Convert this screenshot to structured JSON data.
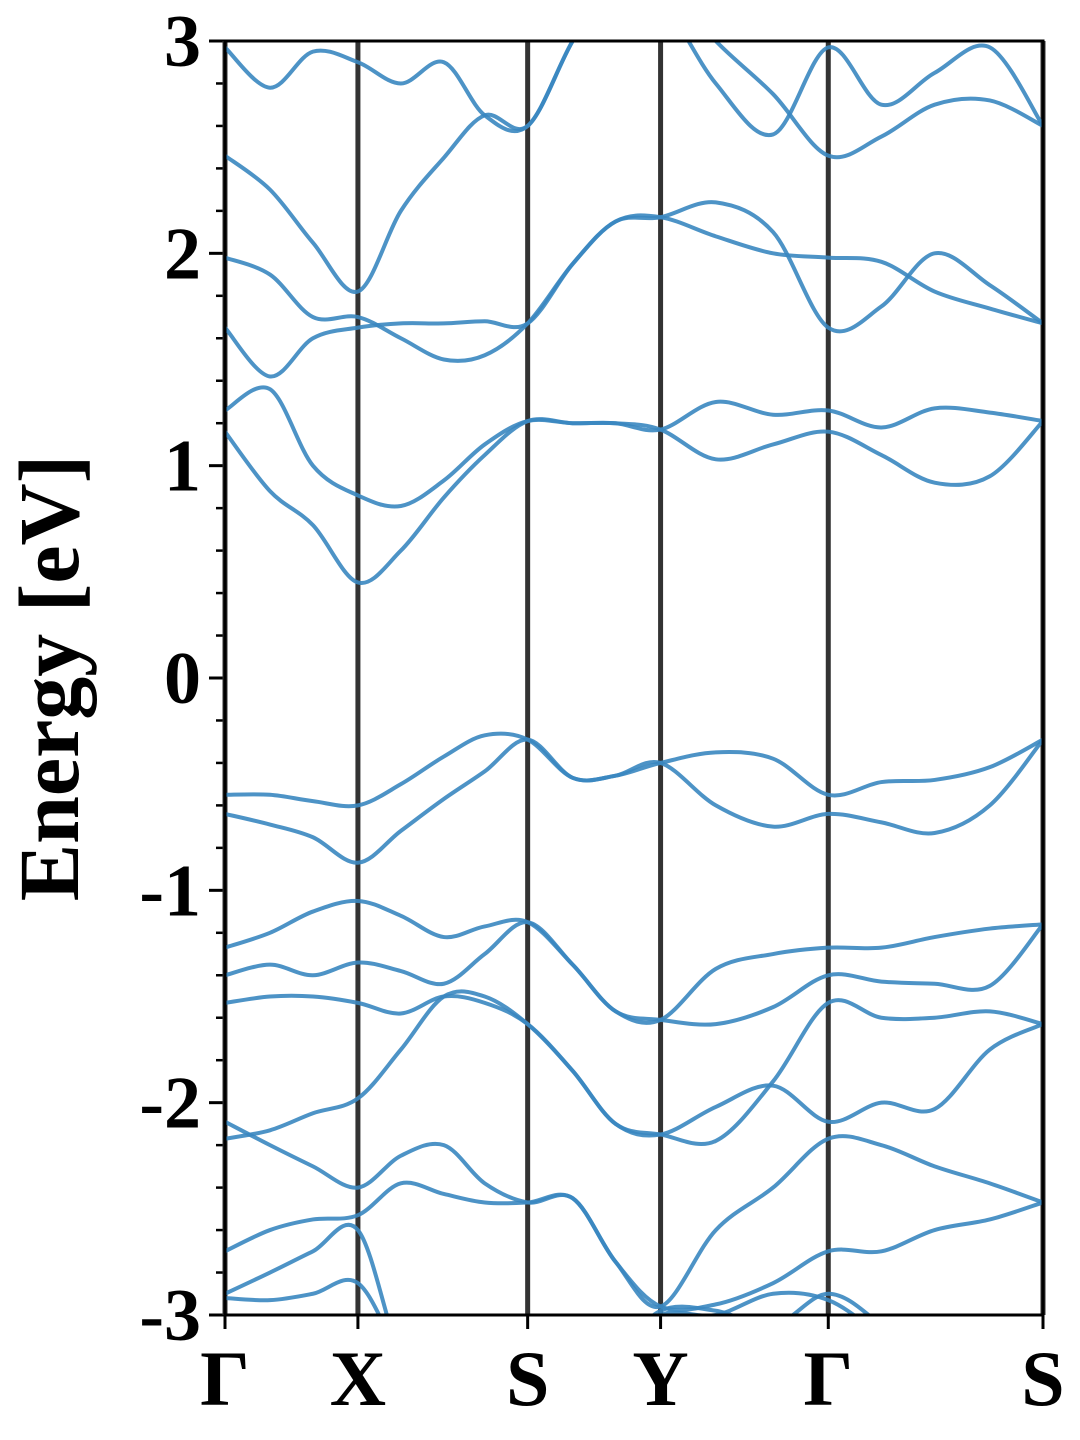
{
  "chart_data": {
    "type": "band-structure",
    "y_label": "Energy [eV]",
    "color": "#3a87c0",
    "line_color": "#333333",
    "xlim": [
      0,
      4
    ],
    "ylim": [
      -3,
      3
    ],
    "xticks": [
      {
        "value": 0,
        "label": "Γ"
      },
      {
        "value": 0.65,
        "label": "X"
      },
      {
        "value": 1.48,
        "label": "S"
      },
      {
        "value": 2.13,
        "label": "Y"
      },
      {
        "value": 2.95,
        "label": "Γ"
      },
      {
        "value": 4.0,
        "label": "S"
      }
    ],
    "yticks": [
      -3,
      -2,
      -1,
      0,
      1,
      2,
      3
    ],
    "yminorticks": [
      -2.8,
      -2.6,
      -2.4,
      -2.2,
      -1.8,
      -1.6,
      -1.4,
      -1.2,
      -0.8,
      -0.6,
      -0.4,
      -0.2,
      0.2,
      0.4,
      0.6,
      0.8,
      1.2,
      1.4,
      1.6,
      1.8,
      2.2,
      2.4,
      2.6,
      2.8
    ],
    "x": [
      0,
      0.22,
      0.43,
      0.65,
      0.86,
      1.07,
      1.27,
      1.48,
      1.7,
      1.91,
      2.13,
      2.4,
      2.68,
      2.95,
      3.21,
      3.47,
      3.74,
      4.0
    ],
    "series": [
      {
        "values": [
          2.97,
          2.78,
          2.95,
          2.9,
          2.8,
          2.9,
          2.65,
          2.6,
          3.0,
          3.3,
          3.2,
          2.8,
          2.56,
          2.97,
          2.7,
          2.85,
          2.97,
          2.6
        ]
      },
      {
        "values": [
          2.46,
          2.3,
          2.05,
          1.82,
          2.2,
          2.45,
          2.65,
          2.6,
          3.0,
          3.3,
          3.3,
          3.0,
          2.75,
          2.46,
          2.55,
          2.7,
          2.72,
          2.6
        ]
      },
      {
        "values": [
          1.98,
          1.9,
          1.7,
          1.7,
          1.6,
          1.5,
          1.52,
          1.67,
          1.95,
          2.15,
          2.17,
          2.24,
          2.1,
          1.65,
          1.75,
          2.0,
          1.85,
          1.67
        ]
      },
      {
        "values": [
          1.65,
          1.42,
          1.6,
          1.65,
          1.67,
          1.67,
          1.68,
          1.67,
          1.95,
          2.15,
          2.17,
          2.08,
          2.0,
          1.98,
          1.96,
          1.82,
          1.74,
          1.67
        ]
      },
      {
        "values": [
          1.26,
          1.36,
          1.0,
          0.86,
          0.81,
          0.93,
          1.1,
          1.21,
          1.2,
          1.2,
          1.17,
          1.3,
          1.24,
          1.26,
          1.18,
          1.27,
          1.25,
          1.21
        ]
      },
      {
        "values": [
          1.16,
          0.88,
          0.72,
          0.45,
          0.6,
          0.85,
          1.05,
          1.21,
          1.2,
          1.2,
          1.17,
          1.03,
          1.1,
          1.16,
          1.05,
          0.92,
          0.95,
          1.21
        ]
      },
      {
        "values": [
          -0.55,
          -0.55,
          -0.58,
          -0.6,
          -0.5,
          -0.37,
          -0.27,
          -0.29,
          -0.47,
          -0.46,
          -0.4,
          -0.35,
          -0.38,
          -0.55,
          -0.49,
          -0.48,
          -0.42,
          -0.29
        ]
      },
      {
        "values": [
          -0.64,
          -0.69,
          -0.75,
          -0.87,
          -0.72,
          -0.57,
          -0.44,
          -0.29,
          -0.47,
          -0.46,
          -0.4,
          -0.6,
          -0.7,
          -0.64,
          -0.68,
          -0.73,
          -0.6,
          -0.29
        ]
      },
      {
        "values": [
          -1.27,
          -1.2,
          -1.1,
          -1.05,
          -1.12,
          -1.22,
          -1.17,
          -1.15,
          -1.35,
          -1.57,
          -1.61,
          -1.37,
          -1.3,
          -1.27,
          -1.27,
          -1.22,
          -1.18,
          -1.16
        ]
      },
      {
        "values": [
          -1.4,
          -1.35,
          -1.4,
          -1.34,
          -1.38,
          -1.44,
          -1.3,
          -1.15,
          -1.35,
          -1.57,
          -1.61,
          -1.63,
          -1.55,
          -1.4,
          -1.43,
          -1.44,
          -1.45,
          -1.16
        ]
      },
      {
        "values": [
          -1.53,
          -1.5,
          -1.5,
          -1.53,
          -1.58,
          -1.5,
          -1.53,
          -1.63,
          -1.85,
          -2.1,
          -2.15,
          -2.02,
          -1.92,
          -2.09,
          -2.0,
          -2.03,
          -1.75,
          -1.63
        ]
      },
      {
        "values": [
          -2.17,
          -2.13,
          -2.05,
          -1.98,
          -1.75,
          -1.5,
          -1.5,
          -1.63,
          -1.85,
          -2.1,
          -2.15,
          -2.18,
          -1.9,
          -1.53,
          -1.6,
          -1.6,
          -1.57,
          -1.63
        ]
      },
      {
        "values": [
          -2.09,
          -2.2,
          -2.3,
          -2.4,
          -2.25,
          -2.2,
          -2.38,
          -2.47,
          -2.45,
          -2.75,
          -2.96,
          -2.6,
          -2.4,
          -2.17,
          -2.2,
          -2.3,
          -2.38,
          -2.47
        ]
      },
      {
        "values": [
          -2.7,
          -2.6,
          -2.55,
          -2.53,
          -2.38,
          -2.43,
          -2.47,
          -2.47,
          -2.45,
          -2.75,
          -2.96,
          -2.95,
          -2.85,
          -2.7,
          -2.7,
          -2.6,
          -2.55,
          -2.47
        ]
      },
      {
        "values": [
          -2.9,
          -2.8,
          -2.7,
          -2.6,
          -3.2,
          -3.5,
          -3.5,
          -3.5,
          -3.4,
          -3.2,
          -2.98,
          -2.98,
          -3.05,
          -2.9,
          -3.05,
          -3.3,
          -3.4,
          -3.4
        ]
      },
      {
        "values": [
          -2.92,
          -2.93,
          -2.9,
          -2.85,
          -3.2,
          -3.5,
          -3.5,
          -3.5,
          -3.4,
          -3.2,
          -3.0,
          -3.0,
          -2.9,
          -2.93,
          -3.1,
          -3.3,
          -3.4,
          -3.4
        ]
      }
    ]
  }
}
